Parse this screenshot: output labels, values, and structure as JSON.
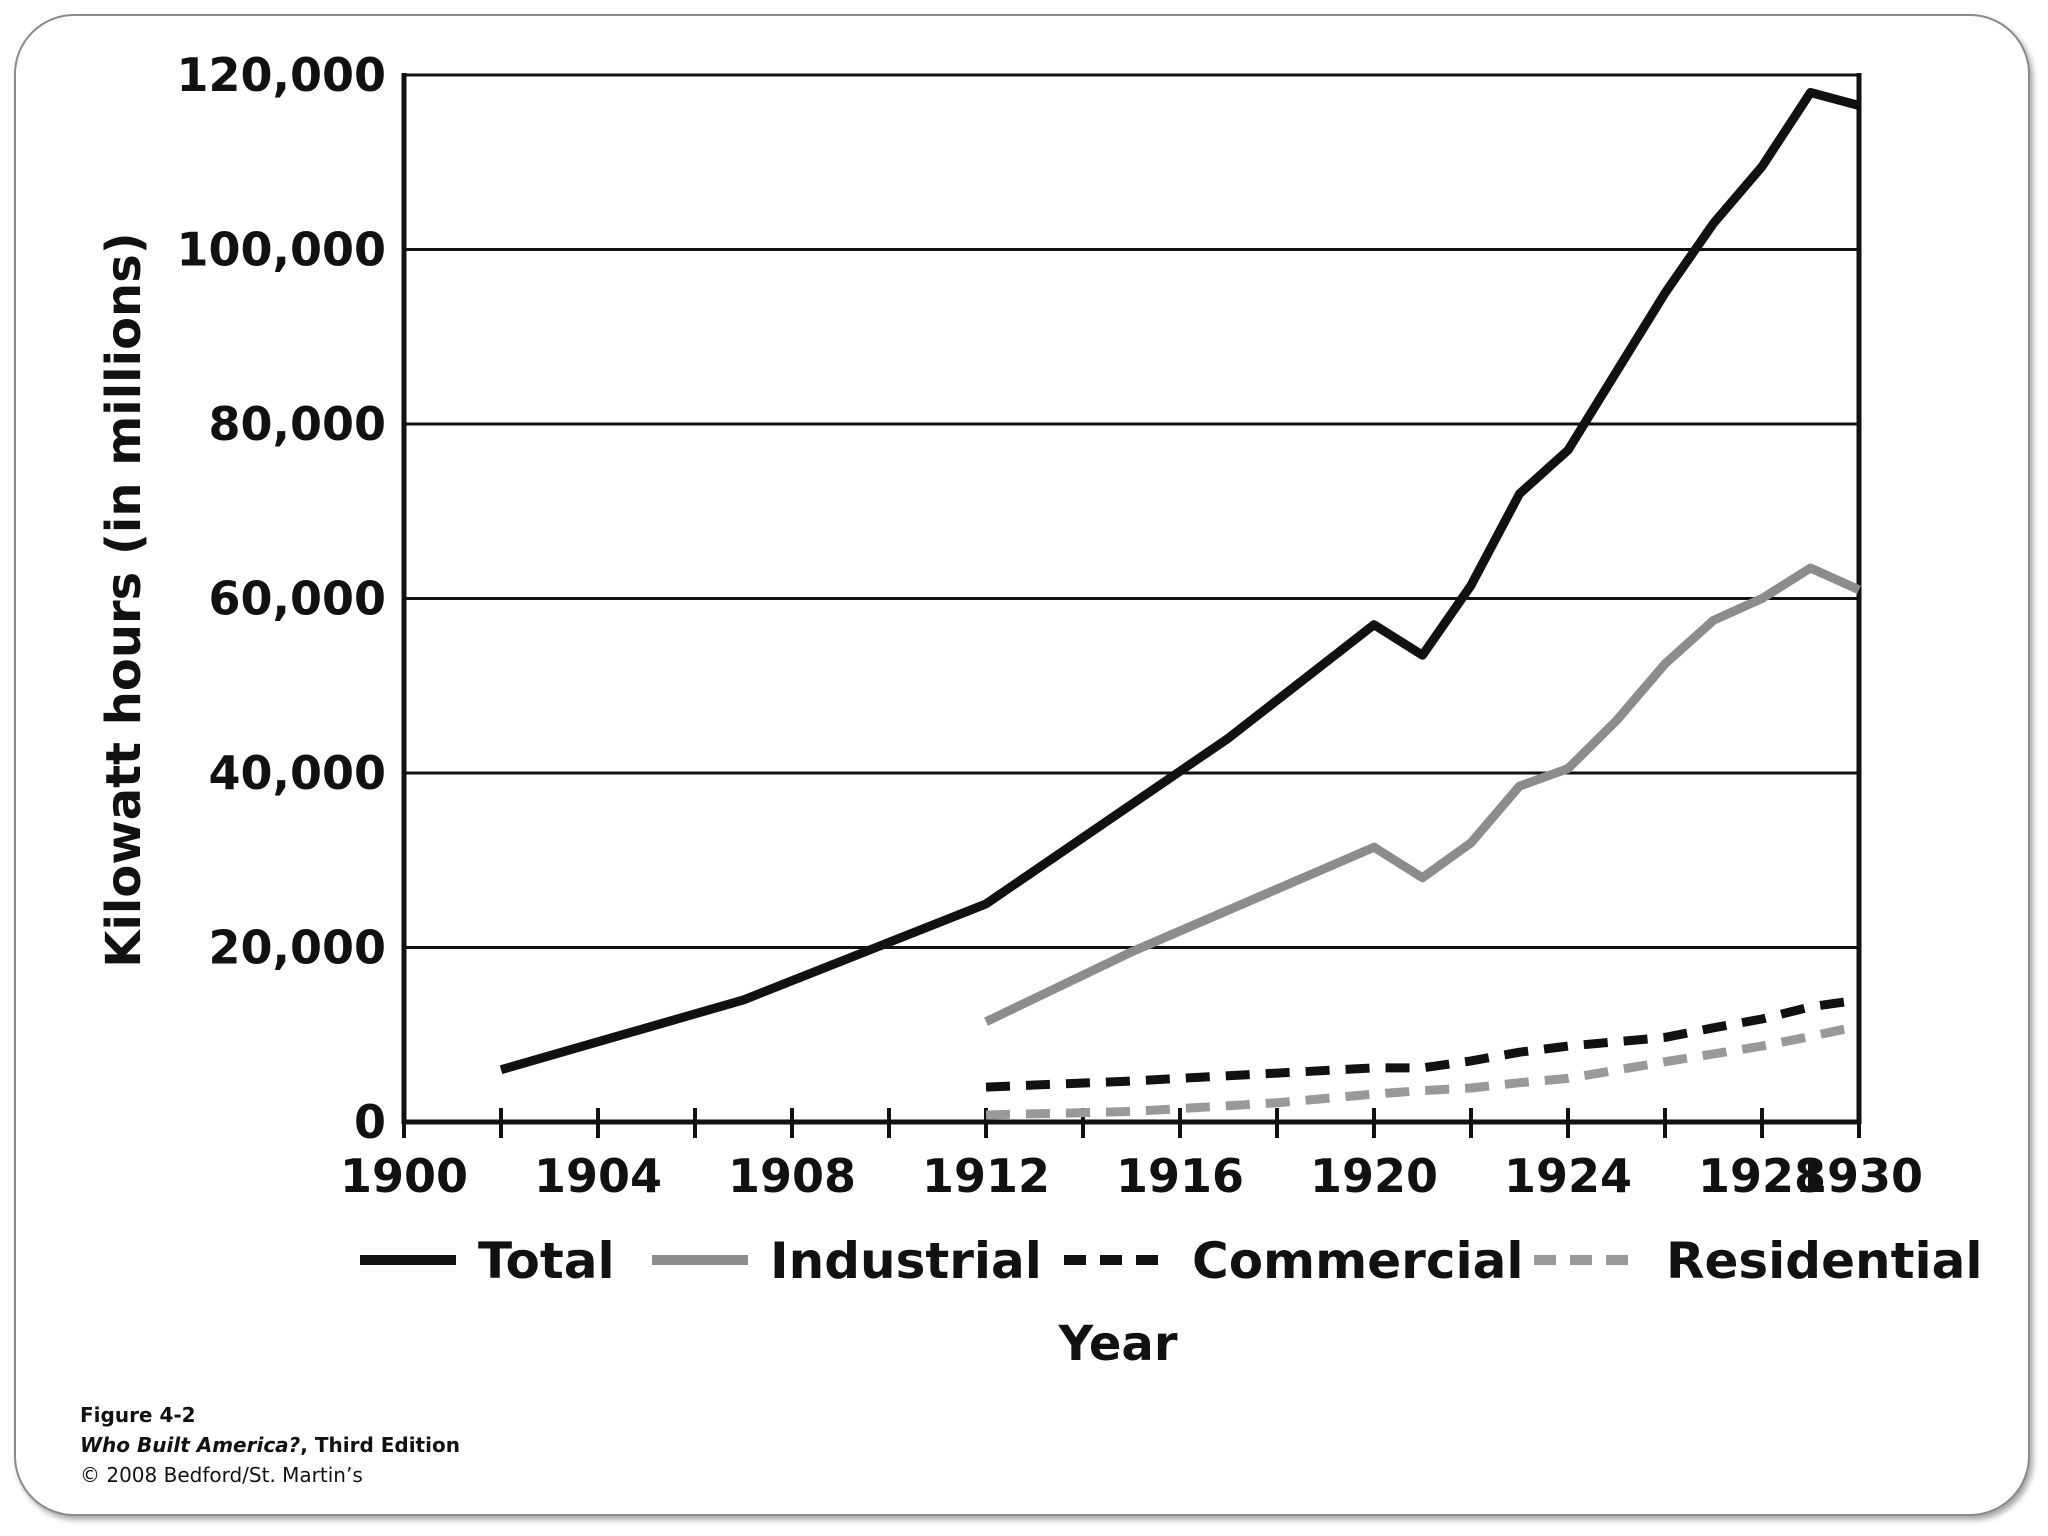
{
  "chart_data": {
    "type": "line",
    "title": "",
    "xlabel": "Year",
    "ylabel": "Kilowatt hours (in millions)",
    "xlim": [
      1900,
      1930
    ],
    "ylim": [
      0,
      120000
    ],
    "x_ticks": [
      1900,
      1902,
      1904,
      1906,
      1908,
      1910,
      1912,
      1914,
      1916,
      1918,
      1920,
      1922,
      1924,
      1926,
      1928,
      1930
    ],
    "x_tick_labels": [
      "1900",
      "1904",
      "1908",
      "1912",
      "1916",
      "1920",
      "1924",
      "1928",
      "1930"
    ],
    "x_tick_label_values": [
      1900,
      1904,
      1908,
      1912,
      1916,
      1920,
      1924,
      1928,
      1930
    ],
    "y_ticks": [
      0,
      20000,
      40000,
      60000,
      80000,
      100000,
      120000
    ],
    "y_tick_labels": [
      "0",
      "20,000",
      "40,000",
      "60,000",
      "80,000",
      "100,000",
      "120,000"
    ],
    "grid": "horizontal",
    "legend_position": "bottom",
    "series": [
      {
        "name": "Total",
        "color": "#111111",
        "dash": "solid",
        "x": [
          1902,
          1907,
          1912,
          1917,
          1920,
          1921,
          1922,
          1923,
          1924,
          1925,
          1926,
          1927,
          1928,
          1929,
          1930
        ],
        "y": [
          6000,
          14000,
          25000,
          44000,
          57000,
          53500,
          61500,
          72000,
          77000,
          86000,
          95000,
          103000,
          109500,
          118000,
          116500
        ]
      },
      {
        "name": "Industrial",
        "color": "#8c8c8c",
        "dash": "solid",
        "x": [
          1912,
          1915,
          1920,
          1921,
          1922,
          1923,
          1924,
          1925,
          1926,
          1927,
          1928,
          1929,
          1930
        ],
        "y": [
          11500,
          19500,
          31500,
          28000,
          32000,
          38500,
          40500,
          46000,
          52500,
          57500,
          60000,
          63500,
          61000
        ]
      },
      {
        "name": "Commercial",
        "color": "#111111",
        "dash": "dashed",
        "x": [
          1912,
          1915,
          1918,
          1920,
          1921,
          1922,
          1923,
          1924,
          1926,
          1927,
          1928,
          1929,
          1930
        ],
        "y": [
          4000,
          4700,
          5600,
          6200,
          6200,
          7000,
          8000,
          8700,
          9700,
          10800,
          11800,
          13200,
          14000
        ]
      },
      {
        "name": "Residential",
        "color": "#999999",
        "dash": "dashed",
        "x": [
          1912,
          1915,
          1918,
          1920,
          1921,
          1922,
          1923,
          1924,
          1926,
          1927,
          1928,
          1929,
          1930
        ],
        "y": [
          800,
          1200,
          2200,
          3200,
          3600,
          3900,
          4500,
          5000,
          6900,
          7800,
          8700,
          9800,
          11000
        ]
      }
    ]
  },
  "credits": {
    "figure": "Figure 4-2",
    "book_title": "Who Built America?",
    "edition": ", Third Edition",
    "copyright": "© 2008 Bedford/St. Martin’s"
  }
}
